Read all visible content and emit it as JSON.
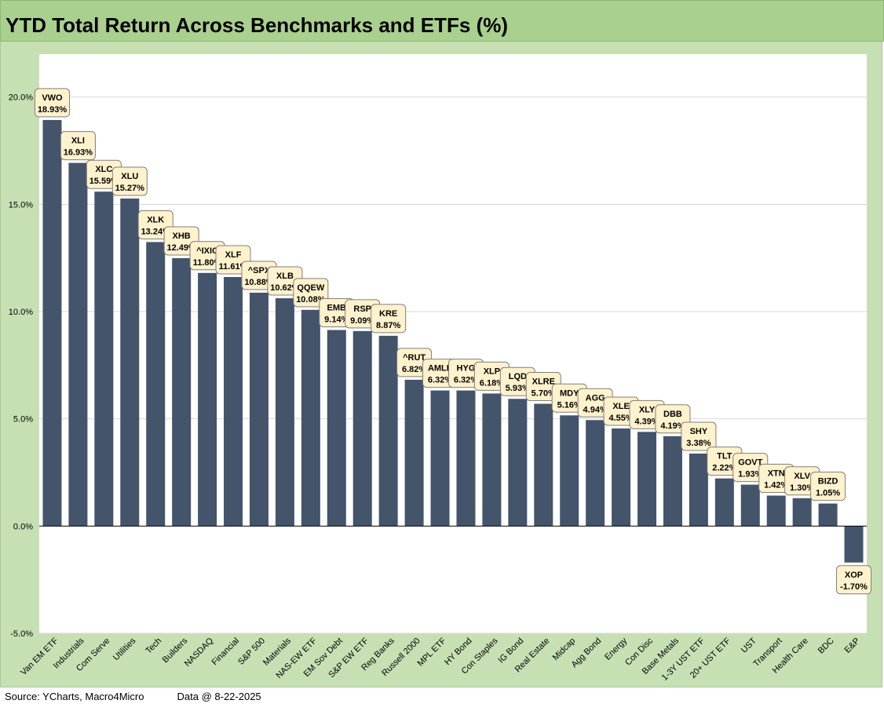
{
  "chart_data": {
    "type": "bar",
    "title": "YTD Total Return Across Benchmarks and ETFs (%)",
    "xlabel": "",
    "ylabel": "",
    "ylim": [
      -5,
      22
    ],
    "yticks": [
      "-5.0%",
      "0.0%",
      "5.0%",
      "10.0%",
      "15.0%",
      "20.0%"
    ],
    "ytick_values": [
      -5,
      0,
      5,
      10,
      15,
      20
    ],
    "grid": true,
    "colors": {
      "bar": "#44546a",
      "label_bg": "#fff2cc",
      "plot_bg": "#ffffff",
      "frame_bg": "#c6e0b4"
    },
    "categories": [
      "Van EM ETF",
      "Industrials",
      "Com Serve",
      "Utilities",
      "Tech",
      "Builders",
      "NASDAQ",
      "Financial",
      "S&P 500",
      "Materials",
      "NAS-EW ETF",
      "EM Sov Debt",
      "S&P EW ETF",
      "Reg Banks",
      "Russell 2000",
      "MPL ETF",
      "HY Bond",
      "Con Staples",
      "IG Bond",
      "Real Estate",
      "Midcap",
      "Agg Bond",
      "Energy",
      "Con Disc",
      "Base Metals",
      "1-3Y UST ETF",
      "20+ UST ETF",
      "UST",
      "Transport",
      "Health Care",
      "BDC",
      "E&P"
    ],
    "tickers": [
      "VWO",
      "XLI",
      "XLC",
      "XLU",
      "XLK",
      "XHB",
      "^IXIC",
      "XLF",
      "^SPX",
      "XLB",
      "QQEW",
      "EMB",
      "RSP",
      "KRE",
      "^RUT",
      "AMLP",
      "HYG",
      "XLP",
      "LQD",
      "XLRE",
      "MDY",
      "AGG",
      "XLE",
      "XLY",
      "DBB",
      "SHY",
      "TLT",
      "GOVT",
      "XTN",
      "XLV",
      "BIZD",
      "XOP"
    ],
    "values": [
      18.93,
      16.93,
      15.59,
      15.27,
      13.24,
      12.49,
      11.8,
      11.61,
      10.88,
      10.62,
      10.08,
      9.14,
      9.09,
      8.87,
      6.82,
      6.32,
      6.32,
      6.18,
      5.93,
      5.7,
      5.16,
      4.94,
      4.55,
      4.39,
      4.19,
      3.38,
      2.22,
      1.93,
      1.42,
      1.3,
      1.05,
      -1.7
    ],
    "value_labels": [
      "18.93%",
      "16.93%",
      "15.59%",
      "15.27%",
      "13.24%",
      "12.49%",
      "11.80%",
      "11.61%",
      "10.88%",
      "10.62%",
      "10.08%",
      "9.14%",
      "9.09%",
      "8.87%",
      "6.82%",
      "6.32%",
      "6.32%",
      "6.18%",
      "5.93%",
      "5.70%",
      "5.16%",
      "4.94%",
      "4.55%",
      "4.39%",
      "4.19%",
      "3.38%",
      "2.22%",
      "1.93%",
      "1.42%",
      "1.30%",
      "1.05%",
      "-1.70%"
    ]
  },
  "footer": {
    "source": "Source: YCharts, Macro4Micro",
    "data_date": "Data @ 8-22-2025"
  }
}
